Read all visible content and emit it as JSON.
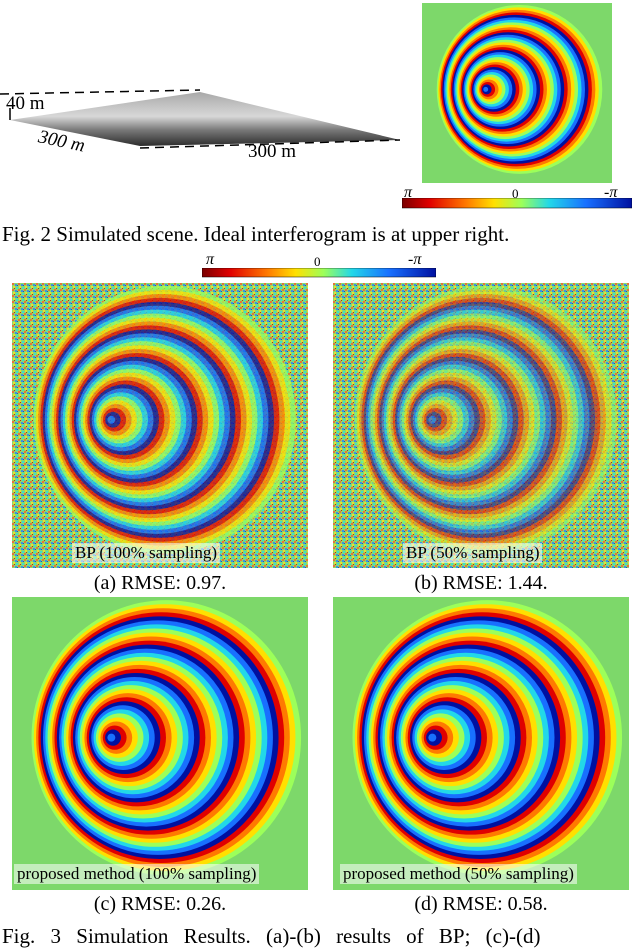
{
  "scene": {
    "label_40m": "40 m",
    "label_300m_left": "300 m",
    "label_300m_right": "300 m"
  },
  "colorbar": {
    "left": "π",
    "center": "0",
    "right": "-π"
  },
  "fig2_caption": "Fig. 2 Simulated scene. Ideal interferogram is at upper right.",
  "panels": [
    {
      "inner_label": "BP (100% sampling)",
      "caption": "(a) RMSE: 0.97."
    },
    {
      "inner_label": "BP (50% sampling)",
      "caption": "(b) RMSE: 1.44."
    },
    {
      "inner_label": "proposed method (100% sampling)",
      "caption": "(c) RMSE: 0.26."
    },
    {
      "inner_label": "proposed method (50% sampling)",
      "caption": "(d) RMSE: 0.58."
    }
  ],
  "fig3_caption": "Fig. 3 Simulation Results. (a)-(b) results of BP; (c)-(d)",
  "colors": {
    "background_green": "#7dd86a",
    "jet": [
      "#7a0000",
      "#e00000",
      "#ff7a00",
      "#ffe000",
      "#9cff5a",
      "#22d8e8",
      "#1870ff",
      "#0010a0"
    ]
  }
}
